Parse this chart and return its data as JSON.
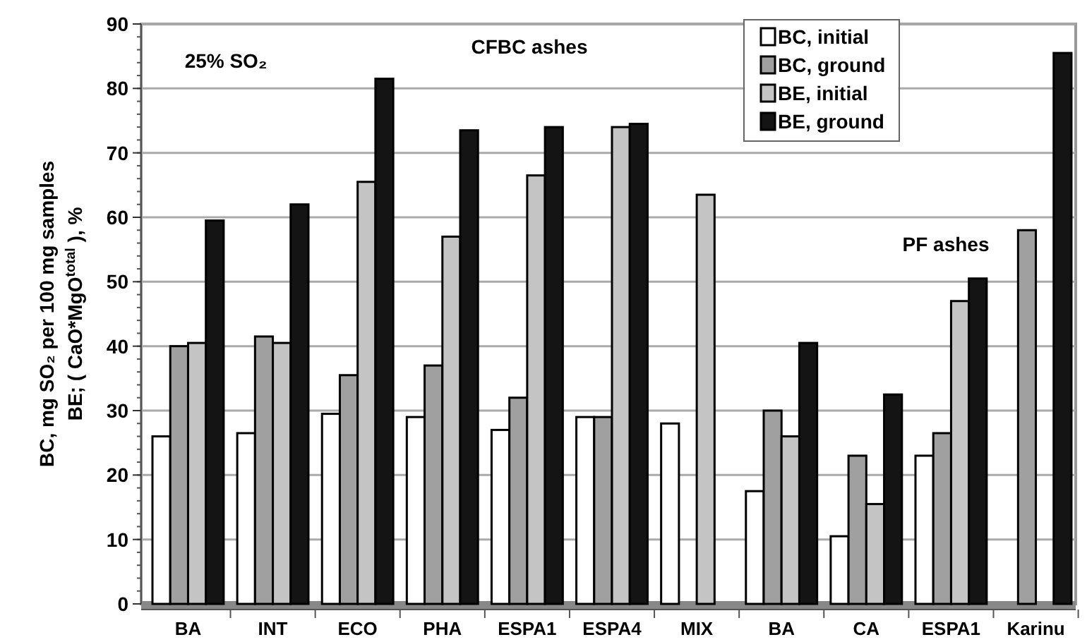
{
  "chart_data": {
    "type": "bar",
    "ylabel": "BC, mg SO₂ per 100 mg samples\nBE; ( CaO*MgO$^{total}$ ), %",
    "categories": [
      "BA",
      "INT",
      "ECO",
      "PHA",
      "ESPA1",
      "ESPA4",
      "MIX",
      "BA",
      "CA",
      "ESPA1",
      "Karinu"
    ],
    "series": [
      {
        "name": "BC, initial",
        "color": "#ffffff",
        "values": [
          26,
          26.5,
          29.5,
          29,
          27,
          29,
          28,
          17.5,
          10.5,
          23,
          null
        ]
      },
      {
        "name": "BC, ground",
        "color": "#a0a0a0",
        "values": [
          40,
          41.5,
          35.5,
          37,
          32,
          29,
          null,
          30,
          23,
          26.5,
          58
        ]
      },
      {
        "name": "BE, initial",
        "color": "#c4c4c4",
        "values": [
          40.5,
          40.5,
          65.5,
          57,
          66.5,
          74,
          63.5,
          26,
          15.5,
          47,
          null
        ]
      },
      {
        "name": "BE, ground",
        "color": "#141414",
        "values": [
          59.5,
          62,
          81.5,
          73.5,
          74,
          74.5,
          null,
          40.5,
          32.5,
          50.5,
          85.5
        ]
      }
    ],
    "ylim": [
      0,
      90
    ],
    "yticks": [
      0,
      10,
      20,
      30,
      40,
      50,
      60,
      70,
      80,
      90
    ],
    "grid": "y",
    "legend": "top right",
    "annotations": [
      "25% SO₂",
      "CFBC ashes",
      "PF ashes"
    ]
  }
}
